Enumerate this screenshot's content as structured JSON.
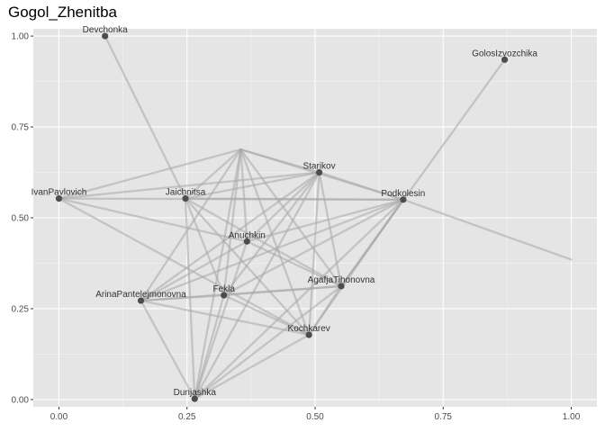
{
  "chart_data": {
    "type": "network",
    "title": "Gogol_Zhenitba",
    "xlim": [
      -0.05,
      1.05
    ],
    "ylim": [
      -0.02,
      1.02
    ],
    "x_ticks": [
      0.0,
      0.25,
      0.5,
      0.75,
      1.0
    ],
    "x_tick_labels": [
      "0.00",
      "0.25",
      "0.50",
      "0.75",
      "1.00"
    ],
    "y_ticks": [
      0.0,
      0.25,
      0.5,
      0.75,
      1.0
    ],
    "y_tick_labels": [
      "0.00",
      "0.25",
      "0.50",
      "0.75",
      "1.00"
    ],
    "colors": {
      "panel": "#e5e5e5",
      "grid_major": "#ffffff",
      "edge": "#a8a8a8",
      "node": "#4d4d4d",
      "label": "#333333"
    },
    "nodes": [
      {
        "id": "Devchonka",
        "label": "Devchonka",
        "x": 0.09,
        "y": 1.0
      },
      {
        "id": "GolosIzvozchika",
        "label": "GolosIzvozchika",
        "x": 0.87,
        "y": 0.935
      },
      {
        "id": "IvanPavlovich",
        "label": "IvanPavlovich",
        "x": 0.0,
        "y": 0.553
      },
      {
        "id": "Jaichnitsa",
        "label": "Jaichnitsa",
        "x": 0.247,
        "y": 0.553
      },
      {
        "id": "Starikov",
        "label": "Starikov",
        "x": 0.508,
        "y": 0.625
      },
      {
        "id": "Podkolesin",
        "label": "Podkolesin",
        "x": 0.672,
        "y": 0.55
      },
      {
        "id": "Anuchkin",
        "label": "Anuchkin",
        "x": 0.367,
        "y": 0.435
      },
      {
        "id": "AgafjaTihonovna",
        "label": "AgafjaTihonovna",
        "x": 0.551,
        "y": 0.312
      },
      {
        "id": "Fekla",
        "label": "Fekla",
        "x": 0.322,
        "y": 0.287
      },
      {
        "id": "ArinaPantelejmonovna",
        "label": "ArinaPantelejmonovna",
        "x": 0.16,
        "y": 0.272
      },
      {
        "id": "Kochkarev",
        "label": "Kochkarev",
        "x": 0.488,
        "y": 0.178
      },
      {
        "id": "Dunjashka",
        "label": "Dunjashka",
        "x": 0.265,
        "y": 0.002
      }
    ],
    "hidden_points": [
      {
        "id": "h1",
        "x": 0.355,
        "y": 0.688
      },
      {
        "id": "h2",
        "x": 1.0,
        "y": 0.385
      }
    ],
    "edges": [
      [
        "Devchonka",
        "Jaichnitsa"
      ],
      [
        "GolosIzvozchika",
        "AgafjaTihonovna"
      ],
      [
        "Podkolesin",
        "h2"
      ],
      [
        "IvanPavlovich",
        "h1"
      ],
      [
        "IvanPavlovich",
        "Starikov"
      ],
      [
        "IvanPavlovich",
        "Podkolesin"
      ],
      [
        "IvanPavlovich",
        "Anuchkin"
      ],
      [
        "IvanPavlovich",
        "Kochkarev"
      ],
      [
        "h1",
        "Starikov"
      ],
      [
        "h1",
        "Podkolesin"
      ],
      [
        "h1",
        "Jaichnitsa"
      ],
      [
        "h1",
        "Anuchkin"
      ],
      [
        "h1",
        "Fekla"
      ],
      [
        "h1",
        "AgafjaTihonovna"
      ],
      [
        "h1",
        "ArinaPantelejmonovna"
      ],
      [
        "h1",
        "Kochkarev"
      ],
      [
        "h1",
        "Dunjashka"
      ],
      [
        "Jaichnitsa",
        "Starikov"
      ],
      [
        "Jaichnitsa",
        "Podkolesin"
      ],
      [
        "Jaichnitsa",
        "Fekla"
      ],
      [
        "Jaichnitsa",
        "AgafjaTihonovna"
      ],
      [
        "Jaichnitsa",
        "Dunjashka"
      ],
      [
        "Jaichnitsa",
        "Kochkarev"
      ],
      [
        "Starikov",
        "Podkolesin"
      ],
      [
        "Starikov",
        "Anuchkin"
      ],
      [
        "Starikov",
        "AgafjaTihonovna"
      ],
      [
        "Starikov",
        "Fekla"
      ],
      [
        "Starikov",
        "Kochkarev"
      ],
      [
        "Starikov",
        "ArinaPantelejmonovna"
      ],
      [
        "Starikov",
        "Dunjashka"
      ],
      [
        "Podkolesin",
        "Anuchkin"
      ],
      [
        "Podkolesin",
        "AgafjaTihonovna"
      ],
      [
        "Podkolesin",
        "Kochkarev"
      ],
      [
        "Podkolesin",
        "Fekla"
      ],
      [
        "Podkolesin",
        "ArinaPantelejmonovna"
      ],
      [
        "Podkolesin",
        "Dunjashka"
      ],
      [
        "Anuchkin",
        "ArinaPantelejmonovna"
      ],
      [
        "Anuchkin",
        "AgafjaTihonovna"
      ],
      [
        "Anuchkin",
        "Dunjashka"
      ],
      [
        "AgafjaTihonovna",
        "Fekla"
      ],
      [
        "AgafjaTihonovna",
        "Kochkarev"
      ],
      [
        "AgafjaTihonovna",
        "ArinaPantelejmonovna"
      ],
      [
        "AgafjaTihonovna",
        "Dunjashka"
      ],
      [
        "Fekla",
        "ArinaPantelejmonovna"
      ],
      [
        "Fekla",
        "Kochkarev"
      ],
      [
        "Fekla",
        "Dunjashka"
      ],
      [
        "ArinaPantelejmonovna",
        "Kochkarev"
      ],
      [
        "ArinaPantelejmonovna",
        "Dunjashka"
      ],
      [
        "Kochkarev",
        "Dunjashka"
      ]
    ]
  }
}
